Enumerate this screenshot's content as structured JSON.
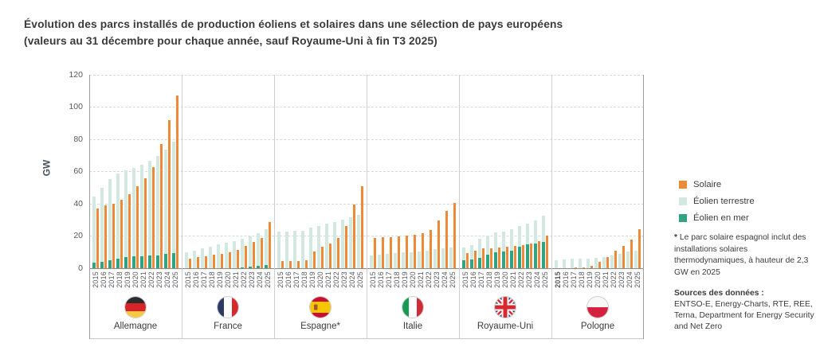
{
  "title": {
    "line1": "Évolution des parcs installés de production éoliens et solaires dans une sélection de pays européens",
    "line2": "(valeurs au 31 décembre pour chaque année, sauf Royaume-Uni à fin T3 2025)"
  },
  "y_axis": {
    "label": "GW",
    "ticks": [
      0,
      20,
      40,
      60,
      80,
      100,
      120
    ]
  },
  "legend": [
    {
      "label": "Solaire",
      "color": "#ec8a38",
      "icon": "orange-square-swatch"
    },
    {
      "label": "Éolien terrestre",
      "color": "#d3e8e1",
      "icon": "light-teal-square-swatch"
    },
    {
      "label": "Éolien en mer",
      "color": "#2fa383",
      "icon": "green-square-swatch"
    }
  ],
  "footnote": {
    "marker": "*",
    "text": "Le parc solaire espagnol inclut des installations solaires thermodynamiques, à hauteur de 2,3 GW en 2025"
  },
  "sources": {
    "heading": "Sources des données :",
    "text": "ENTSO-E, Energy-Charts, RTE, REE, Terna, Department for Energy Security and Net Zero"
  },
  "chart_data": {
    "type": "bar",
    "unit": "GW",
    "ylim": [
      0,
      120
    ],
    "grid": true,
    "years": [
      "2015",
      "2016",
      "2017",
      "2018",
      "2019",
      "2020",
      "2021",
      "2022",
      "2023",
      "2024",
      "2025"
    ],
    "series_names": [
      "Solaire",
      "Éolien terrestre",
      "Éolien en mer"
    ],
    "note": "Per year two bars: stacked wind (éolien en mer bottom + éolien terrestre top) and solaire; values in GW",
    "countries": [
      {
        "name": "Allemagne",
        "flag": "de",
        "flag_icon": "germany-flag-icon",
        "solaire": [
          37,
          39,
          40,
          42.5,
          46,
          51,
          56,
          62.5,
          77,
          92,
          107
        ],
        "eolien_terrestre": [
          41.2,
          45.8,
          50,
          53,
          54,
          55,
          56.8,
          59,
          61.5,
          64.7,
          69.3
        ],
        "eolien_en_mer": [
          3.3,
          4.2,
          5.2,
          5.9,
          7,
          7.2,
          7.5,
          7.7,
          8.1,
          8.8,
          9.2
        ]
      },
      {
        "name": "France",
        "flag": "fr",
        "flag_icon": "france-flag-icon",
        "solaire": [
          6,
          6.8,
          7.5,
          8.2,
          8.9,
          9.8,
          11.6,
          13.8,
          16.2,
          18.7,
          28.5
        ],
        "eolien_terrestre": [
          9.7,
          11,
          12.3,
          13.5,
          14.7,
          15.7,
          16.8,
          17.8,
          19.1,
          20.5,
          22.3
        ],
        "eolien_en_mer": [
          0,
          0,
          0,
          0,
          0,
          0,
          0,
          0.5,
          0.9,
          1.5,
          1.9
        ]
      },
      {
        "name": "Espagne*",
        "flag": "es",
        "flag_icon": "spain-flag-icon",
        "solaire": [
          4.6,
          4.7,
          4.7,
          4.9,
          10.6,
          13.2,
          15.2,
          18.8,
          26,
          39.5,
          51
        ],
        "eolien_terrestre": [
          22.8,
          22.9,
          23.1,
          23.4,
          25.1,
          26.3,
          27.7,
          28.9,
          30.3,
          31.5,
          33
        ],
        "eolien_en_mer": [
          0,
          0,
          0,
          0,
          0,
          0,
          0,
          0,
          0,
          0,
          0
        ]
      },
      {
        "name": "Italie",
        "flag": "it",
        "flag_icon": "italy-flag-icon",
        "solaire": [
          18.8,
          19.2,
          19.4,
          19.8,
          20.3,
          20.8,
          21.6,
          23.5,
          29.5,
          35.5,
          40.5
        ],
        "eolien_terrestre": [
          7.8,
          8.3,
          8.8,
          9.3,
          9.8,
          10,
          10.5,
          11,
          11.7,
          12.3,
          13
        ],
        "eolien_en_mer": [
          0,
          0,
          0,
          0,
          0,
          0,
          0,
          0,
          0,
          0,
          0
        ]
      },
      {
        "name": "Royaume-Uni",
        "flag": "gb",
        "flag_icon": "uk-flag-icon",
        "solaire": [
          9.3,
          10.7,
          12.2,
          12.6,
          12.9,
          13.2,
          13.7,
          14.5,
          15.5,
          16.9,
          20.5
        ],
        "eolien_terrestre": [
          7.8,
          9,
          11.8,
          12.2,
          12.2,
          12.4,
          13.4,
          12.7,
          13.2,
          14.3,
          16.2
        ],
        "eolien_en_mer": [
          5.1,
          5.5,
          6.4,
          8.3,
          9.9,
          10.4,
          10.9,
          13.4,
          14.7,
          15.5,
          16.5
        ]
      },
      {
        "name": "Pologne",
        "flag": "pl",
        "flag_icon": "poland-flag-icon",
        "first_year_bold": true,
        "solaire": [
          0.1,
          0.2,
          0.3,
          0.5,
          1.5,
          3.9,
          7,
          11,
          14,
          17.8,
          24.4
        ],
        "eolien_terrestre": [
          5.1,
          5.5,
          5.8,
          5.8,
          5.9,
          6.3,
          7,
          7.7,
          8.9,
          10.4,
          10.9
        ],
        "eolien_en_mer": [
          0,
          0,
          0,
          0,
          0,
          0,
          0,
          0,
          0,
          0,
          0
        ]
      }
    ]
  }
}
